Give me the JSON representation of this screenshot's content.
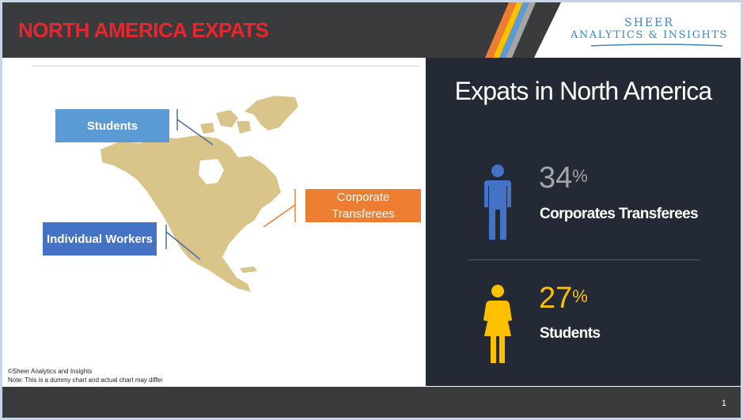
{
  "header": {
    "title": "NORTH AMERICA EXPATS",
    "logo_line1": "SHEER",
    "logo_line2": "ANALYTICS & INSIGHTS"
  },
  "map": {
    "labels": {
      "students": "Students",
      "individual_workers": "Individual Workers",
      "corporate_transferees": "Corporate Transferees"
    },
    "colors": {
      "land": "#d9c48a",
      "students": "#5b9bd5",
      "individual_workers": "#4472c4",
      "corporate_transferees": "#ed7d31"
    }
  },
  "footnote": {
    "line1": "©Sheer Analytics and Insights",
    "line2": "Note: This is a dummy chart and actual chart may differ"
  },
  "panel": {
    "title": "Expats in North America",
    "stats": [
      {
        "value": "34",
        "unit": "%",
        "label": "Corporates Transferees",
        "icon": "male-person-icon",
        "color": "#4472c4",
        "value_color": "#a5a5a5"
      },
      {
        "value": "27",
        "unit": "%",
        "label": "Students",
        "icon": "female-person-icon",
        "color": "#ffc000",
        "value_color": "#ffc000"
      }
    ]
  },
  "footer": {
    "page_number": "1"
  }
}
